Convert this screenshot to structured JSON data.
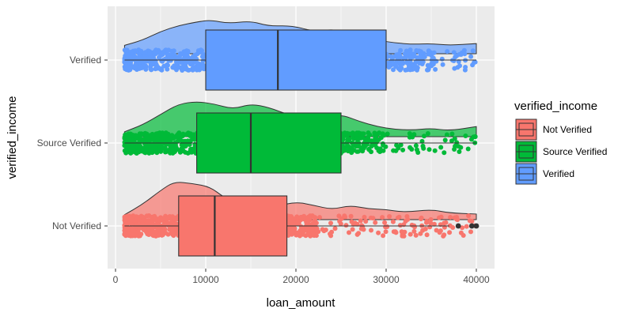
{
  "chart_data": {
    "type": "raincloud-boxplot",
    "title": "",
    "xlabel": "loan_amount",
    "ylabel": "verified_income",
    "xlim": [
      0,
      41000
    ],
    "x_ticks": [
      0,
      10000,
      20000,
      30000,
      40000
    ],
    "x_tick_labels": [
      "0",
      "10000",
      "20000",
      "30000",
      "40000"
    ],
    "categories": [
      "Not Verified",
      "Source Verified",
      "Verified"
    ],
    "grid": true,
    "legend": {
      "title": "verified_income",
      "placement": "right",
      "entries": [
        "Not Verified",
        "Source Verified",
        "Verified"
      ]
    },
    "colors": {
      "Not Verified": "#F8766D",
      "Source Verified": "#00BA38",
      "Verified": "#619CFF",
      "panel": "#EBEBEB",
      "grid": "#FFFFFF",
      "outline": "#333333"
    },
    "series": [
      {
        "name": "Not Verified",
        "min": 1000,
        "q1": 7000,
        "median": 11000,
        "q3": 19000,
        "max": 37000,
        "outliers": [
          38000,
          39500,
          40000
        ],
        "density": [
          [
            1000,
            0.05
          ],
          [
            3000,
            0.35
          ],
          [
            5000,
            0.75
          ],
          [
            6500,
            1.0
          ],
          [
            8500,
            0.95
          ],
          [
            10500,
            0.85
          ],
          [
            12000,
            0.55
          ],
          [
            14000,
            0.3
          ],
          [
            16000,
            0.2
          ],
          [
            18000,
            0.3
          ],
          [
            20000,
            0.42
          ],
          [
            22000,
            0.32
          ],
          [
            24000,
            0.2
          ],
          [
            26000,
            0.32
          ],
          [
            28000,
            0.22
          ],
          [
            30000,
            0.2
          ],
          [
            32000,
            0.12
          ],
          [
            35000,
            0.2
          ],
          [
            37000,
            0.1
          ],
          [
            40000,
            0.07
          ]
        ]
      },
      {
        "name": "Source Verified",
        "min": 1000,
        "q1": 9000,
        "median": 15000,
        "q3": 25000,
        "max": 40000,
        "outliers": [],
        "density": [
          [
            1000,
            0.05
          ],
          [
            3000,
            0.25
          ],
          [
            5000,
            0.55
          ],
          [
            7000,
            0.85
          ],
          [
            9000,
            0.92
          ],
          [
            11000,
            0.85
          ],
          [
            13000,
            0.7
          ],
          [
            15000,
            0.85
          ],
          [
            17000,
            0.75
          ],
          [
            19000,
            0.55
          ],
          [
            21000,
            0.48
          ],
          [
            23000,
            0.42
          ],
          [
            25000,
            0.55
          ],
          [
            27000,
            0.35
          ],
          [
            29000,
            0.2
          ],
          [
            31000,
            0.12
          ],
          [
            33000,
            0.1
          ],
          [
            35000,
            0.15
          ],
          [
            37000,
            0.08
          ],
          [
            40000,
            0.2
          ]
        ]
      },
      {
        "name": "Verified",
        "min": 1000,
        "q1": 10000,
        "median": 18000,
        "q3": 30000,
        "max": 40000,
        "outliers": [],
        "density": [
          [
            1000,
            0.15
          ],
          [
            3000,
            0.3
          ],
          [
            5000,
            0.55
          ],
          [
            7000,
            0.72
          ],
          [
            9000,
            0.82
          ],
          [
            10500,
            0.88
          ],
          [
            12500,
            0.78
          ],
          [
            15000,
            0.85
          ],
          [
            17000,
            0.7
          ],
          [
            19500,
            0.72
          ],
          [
            22000,
            0.55
          ],
          [
            24500,
            0.62
          ],
          [
            27000,
            0.42
          ],
          [
            29000,
            0.3
          ],
          [
            31000,
            0.22
          ],
          [
            33000,
            0.18
          ],
          [
            35000,
            0.2
          ],
          [
            37000,
            0.15
          ],
          [
            40000,
            0.2
          ]
        ]
      }
    ]
  }
}
